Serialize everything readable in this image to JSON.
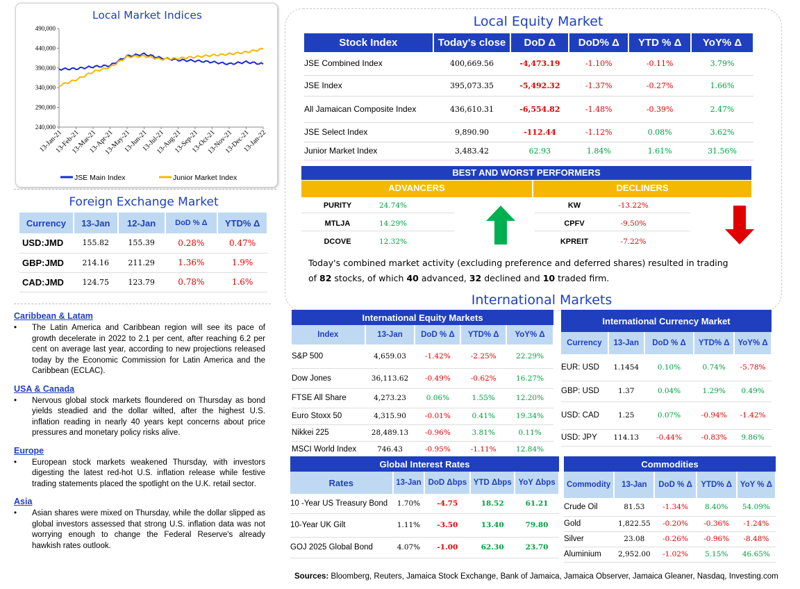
{
  "chart": {
    "title": "Local Market Indices",
    "legend": [
      "JSE Main Index",
      "Junior Market Index"
    ],
    "colors": {
      "main": "#1a2bd6",
      "junior": "#f5b800"
    }
  },
  "chart_data": {
    "type": "line",
    "title": "Local Market Indices",
    "x": [
      "13-Jan-21",
      "13-Feb-21",
      "13-Mar-21",
      "13-Apr-21",
      "13-May-21",
      "13-Jun-21",
      "13-Jul-21",
      "13-Aug-21",
      "13-Sep-21",
      "13-Oct-21",
      "13-Nov-21",
      "13-Dec-21",
      "13-Jan-22"
    ],
    "yticks": [
      "490,000",
      "440,000",
      "390,000",
      "340,000",
      "290,000",
      "240,000"
    ],
    "ylim": [
      240000,
      490000
    ],
    "series": [
      {
        "name": "JSE Main Index",
        "values": [
          387000,
          388000,
          393000,
          396000,
          420000,
          425000,
          415000,
          410000,
          408000,
          405000,
          400000,
          405000,
          400000
        ]
      },
      {
        "name": "Junior Market Index",
        "values": [
          345000,
          360000,
          380000,
          392000,
          418000,
          420000,
          412000,
          414000,
          418000,
          422000,
          425000,
          430000,
          438000
        ]
      }
    ],
    "legend": "bottom",
    "grid": false
  },
  "fx": {
    "title": "Foreign Exchange Market",
    "headers": [
      "Currency",
      "13-Jan",
      "12-Jan",
      "DoD % Δ",
      "YTD% Δ"
    ],
    "rows": [
      {
        "cur": "USD:JMD",
        "a": "155.82",
        "b": "155.39",
        "dod": "0.28%",
        "ytd": "0.47%"
      },
      {
        "cur": "GBP:JMD",
        "a": "214.16",
        "b": "211.29",
        "dod": "1.36%",
        "ytd": "1.9%"
      },
      {
        "cur": "CAD:JMD",
        "a": "124.75",
        "b": "123.79",
        "dod": "0.78%",
        "ytd": "1.6%"
      }
    ]
  },
  "news": [
    {
      "heading": "Caribbean & Latam",
      "text": "The Latin America and Caribbean region will see its pace of growth decelerate in 2022 to 2.1 per cent, after reaching 6.2 per cent on average last year, according to new projections released today by the Economic Commission for Latin America and the Caribbean (ECLAC)."
    },
    {
      "heading": "USA & Canada",
      "text": "Nervous global stock markets floundered on Thursday as bond yields steadied and the dollar wilted, after the highest U.S. inflation reading in nearly 40 years kept concerns about price pressures and monetary policy risks alive."
    },
    {
      "heading": "Europe",
      "text": "European stock markets weakened Thursday, with investors digesting the latest red-hot U.S. inflation release while festive trading statements placed the spotlight on the U.K. retail sector."
    },
    {
      "heading": "Asia",
      "text": "Asian shares were mixed on Thursday, while the dollar slipped as global investors assessed that strong U.S. inflation data was not worrying enough to change the Federal Reserve's already hawkish rates outlook."
    }
  ],
  "equity": {
    "title": "Local Equity Market",
    "headers": [
      "Stock Index",
      "Today's close",
      "DoD Δ",
      "DoD% Δ",
      "YTD % Δ",
      "YoY% Δ"
    ],
    "rows": [
      {
        "name": "JSE Combined Index",
        "close": "400,669.56",
        "dod": "-4,473.19",
        "dodp": "-1.10%",
        "ytd": "-0.11%",
        "yoy": "3.79%"
      },
      {
        "name": "JSE Index",
        "close": "395,073.35",
        "dod": "-5,492.32",
        "dodp": "-1.37%",
        "ytd": "-0.27%",
        "yoy": "1.66%"
      },
      {
        "name": "All Jamaican Composite Index",
        "close": "436,610.31",
        "dod": "-6,554.82",
        "dodp": "-1.48%",
        "ytd": "-0.39%",
        "yoy": "2.47%"
      },
      {
        "name": "JSE Select Index",
        "close": "9,890.90",
        "dod": "-112.44",
        "dodp": "-1.12%",
        "ytd": "0.08%",
        "yoy": "3.62%"
      },
      {
        "name": "Junior Market Index",
        "close": "3,483.42",
        "dod": "62.93",
        "dodp": "1.84%",
        "ytd": "1.61%",
        "yoy": "31.56%"
      }
    ]
  },
  "performers": {
    "title": "BEST AND WORST PERFORMERS",
    "advancers_label": "ADVANCERS",
    "decliners_label": "DECLINERS",
    "advancers": [
      {
        "sym": "PURITY",
        "val": "24.74%"
      },
      {
        "sym": "MTLJA",
        "val": "14.29%"
      },
      {
        "sym": "DCOVE",
        "val": "12.32%"
      }
    ],
    "decliners": [
      {
        "sym": "KW",
        "val": "-13.22%"
      },
      {
        "sym": "CPFV",
        "val": "-9.50%"
      },
      {
        "sym": "KPREIT",
        "val": "-7.22%"
      }
    ]
  },
  "summary": {
    "t1": "Today's combined market activity (excluding preference and deferred shares) resulted in trading of ",
    "n_traded": "82",
    "t2": " stocks, of which ",
    "n_adv": "40",
    "t3": " advanced, ",
    "n_dec": "32",
    "t4": " declined and ",
    "n_firm": "10",
    "t5": " traded firm."
  },
  "intl_title": "International Markets",
  "intl_equity": {
    "title": "International Equity Markets",
    "headers": [
      "Index",
      "13-Jan",
      "DoD % Δ",
      "YTD% Δ",
      "YoY% Δ"
    ],
    "rows": [
      {
        "name": "S&P 500",
        "v": "4,659.03",
        "dod": "-1.42%",
        "ytd": "-2.25%",
        "yoy": "22.29%"
      },
      {
        "name": "Dow Jones",
        "v": "36,113.62",
        "dod": "-0.49%",
        "ytd": "-0.62%",
        "yoy": "16.27%"
      },
      {
        "name": "FTSE All Share",
        "v": "4,273.23",
        "dod": "0.06%",
        "ytd": "1.55%",
        "yoy": "12.20%"
      },
      {
        "name": "Euro Stoxx 50",
        "v": "4,315.90",
        "dod": "-0.01%",
        "ytd": "0.41%",
        "yoy": "19.34%"
      },
      {
        "name": "Nikkei 225",
        "v": "28,489.13",
        "dod": "-0.96%",
        "ytd": "3.81%",
        "yoy": "0.11%"
      },
      {
        "name": "MSCI World Index",
        "v": "746.43",
        "dod": "-0.95%",
        "ytd": "-1.11%",
        "yoy": "12.84%"
      }
    ]
  },
  "intl_currency": {
    "title": "International Currency Market",
    "headers": [
      "Currency",
      "13-Jan",
      "DoD % Δ",
      "YTD% Δ",
      "YoY% Δ"
    ],
    "rows": [
      {
        "name": "EUR: USD",
        "v": "1.1454",
        "dod": "0.10%",
        "ytd": "0.74%",
        "yoy": "-5.78%"
      },
      {
        "name": "GBP: USD",
        "v": "1.37",
        "dod": "0.04%",
        "ytd": "1.29%",
        "yoy": "0.49%"
      },
      {
        "name": "USD: CAD",
        "v": "1.25",
        "dod": "0.07%",
        "ytd": "-0.94%",
        "yoy": "-1.42%"
      },
      {
        "name": "USD: JPY",
        "v": "114.13",
        "dod": "-0.44%",
        "ytd": "-0.83%",
        "yoy": "9.86%"
      }
    ]
  },
  "rates": {
    "title": "Global Interest Rates",
    "headers": [
      "Rates",
      "13-Jan",
      "DoD Δbps",
      "YTD Δbps",
      "YoY Δbps"
    ],
    "rows": [
      {
        "name": "10 -Year US Treasury Bond",
        "v": "1.70%",
        "dod": "-4.75",
        "ytd": "18.52",
        "yoy": "61.21"
      },
      {
        "name": "10-Year UK Gilt",
        "v": "1.11%",
        "dod": "-3.50",
        "ytd": "13.40",
        "yoy": "79.80"
      },
      {
        "name": "GOJ 2025 Global Bond",
        "v": "4.07%",
        "dod": "-1.00",
        "ytd": "62.30",
        "yoy": "23.70"
      }
    ]
  },
  "commodities": {
    "title": "Commodities",
    "headers": [
      "Commodity",
      "13-Jan",
      "DoD % Δ",
      "YTD% Δ",
      "YoY % Δ"
    ],
    "rows": [
      {
        "name": "Crude Oil",
        "v": "81.53",
        "dod": "-1.34%",
        "ytd": "8.40%",
        "yoy": "54.09%"
      },
      {
        "name": "Gold",
        "v": "1,822.55",
        "dod": "-0.20%",
        "ytd": "-0.36%",
        "yoy": "-1.24%"
      },
      {
        "name": "Silver",
        "v": "23.08",
        "dod": "-0.26%",
        "ytd": "-0.96%",
        "yoy": "-8.48%"
      },
      {
        "name": "Aluminium",
        "v": "2,952.00",
        "dod": "-1.02%",
        "ytd": "5.15%",
        "yoy": "46.65%"
      }
    ]
  },
  "sources": {
    "label": "Sources:",
    "text": " Bloomberg, Reuters, Jamaica Stock Exchange, Bank of Jamaica, Jamaica Observer, Jamaica Gleaner, Nasdaq, Investing.com"
  }
}
